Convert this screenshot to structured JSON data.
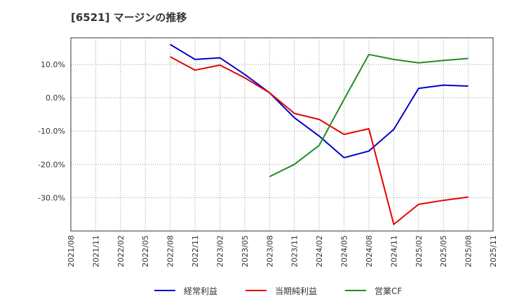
{
  "chart_data": {
    "type": "line",
    "title": "[6521]  マージンの推移",
    "xlabel": "",
    "ylabel": "",
    "ylim": [
      -40,
      18
    ],
    "yticks": [
      10,
      0,
      -10,
      -20,
      -30
    ],
    "ytick_labels": [
      "10.0%",
      "0.0%",
      "-10.0%",
      "-20.0%",
      "-30.0%"
    ],
    "grid": true,
    "legend_position": "bottom",
    "x": [
      "2021/08",
      "2021/11",
      "2022/02",
      "2022/05",
      "2022/08",
      "2022/11",
      "2023/02",
      "2023/05",
      "2023/08",
      "2023/11",
      "2024/02",
      "2024/05",
      "2024/08",
      "2024/11",
      "2025/02",
      "2025/05",
      "2025/08",
      "2025/11"
    ],
    "series": [
      {
        "name": "経常利益",
        "color": "#0000cc",
        "values": [
          null,
          null,
          null,
          null,
          16.0,
          11.5,
          12.0,
          7.0,
          1.5,
          -6.0,
          -11.5,
          -18.0,
          -16.0,
          -9.5,
          2.8,
          3.8,
          3.5,
          null
        ]
      },
      {
        "name": "当期純利益",
        "color": "#e60000",
        "values": [
          null,
          null,
          null,
          null,
          12.3,
          8.3,
          9.8,
          6.0,
          1.5,
          -4.7,
          -6.5,
          -11.0,
          -9.3,
          -38.0,
          -32.0,
          -30.8,
          -29.8,
          null
        ]
      },
      {
        "name": "営業CF",
        "color": "#228b22",
        "values": [
          null,
          null,
          null,
          null,
          null,
          null,
          null,
          null,
          -23.7,
          -20.0,
          -14.3,
          -0.5,
          13.0,
          11.5,
          10.5,
          11.2,
          11.8,
          null
        ]
      }
    ]
  }
}
